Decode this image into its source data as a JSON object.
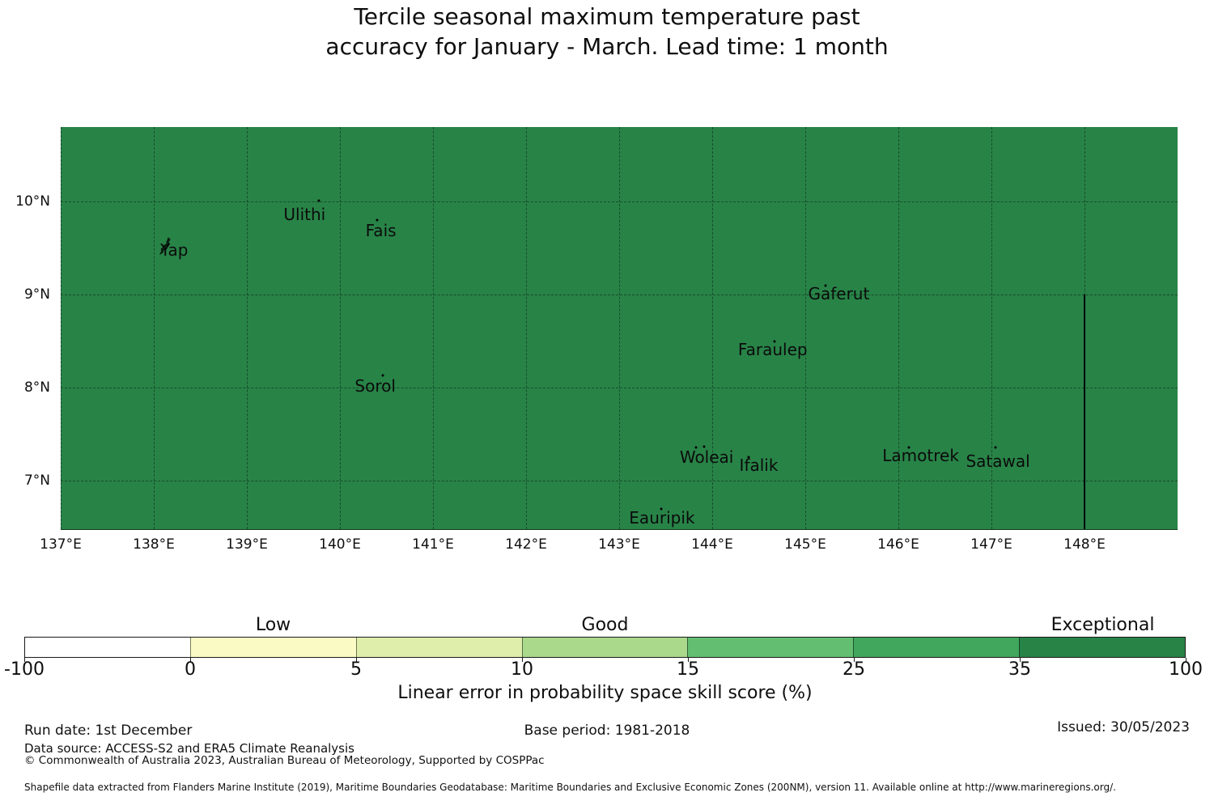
{
  "title": {
    "line1": "Tercile seasonal maximum temperature past",
    "line2": "accuracy for January - March. Lead time: 1 month"
  },
  "colorbar": {
    "axis_label": "Linear error in probability space skill score (%)",
    "tick_labels": [
      "-100",
      "0",
      "5",
      "10",
      "15",
      "25",
      "35",
      "100"
    ],
    "boundaries": [
      -100,
      0,
      5,
      10,
      15,
      25,
      35,
      100
    ],
    "segment_colors": [
      "#ffffff",
      "#fafac5",
      "#dfeeab",
      "#aad98b",
      "#63be72",
      "#41a75d",
      "#288347"
    ],
    "categories": [
      {
        "label": "Low",
        "segment_index": 1
      },
      {
        "label": "Good",
        "segment_index": 3
      },
      {
        "label": "Exceptional",
        "segment_index": 6
      }
    ]
  },
  "footer": {
    "run_date": "Run date: 1st December",
    "base_period": "Base period: 1981-2018",
    "issued": "Issued: 30/05/2023",
    "data_source": "Data source: ACCESS-S2 and ERA5 Climate Reanalysis",
    "copyright": "© Commonwealth of Australia 2023, Australian Bureau of Meteorology, Supported by COSPPac",
    "shapefile": "Shapefile data extracted from Flanders Marine Institute (2019), Maritime Boundaries Geodatabase: Maritime Boundaries and Exclusive Economic Zones (200NM), version 11. Available online at http://www.marineregions.org/."
  },
  "chart_data": {
    "type": "heatmap",
    "title": "Tercile seasonal maximum temperature past accuracy for January - March. Lead time: 1 month",
    "xlabel": "",
    "ylabel": "",
    "x_axis": {
      "ticks": [
        137,
        138,
        139,
        140,
        141,
        142,
        143,
        144,
        145,
        146,
        147,
        148
      ],
      "tick_suffix": "°E",
      "lim": [
        137,
        149
      ]
    },
    "y_axis": {
      "ticks": [
        10,
        9,
        8,
        7
      ],
      "tick_suffix": "°N",
      "lim": [
        6.48,
        10.8
      ]
    },
    "grid": "dashed",
    "region_fill": {
      "category": "Exceptional",
      "value_bin": "35-100",
      "color": "#288347"
    },
    "eez_boundary_line": {
      "lon": 148.0,
      "lat_start": 9.0,
      "lat_end": 6.48
    },
    "islands": [
      {
        "name": "Yap",
        "label_lon": 138.22,
        "label_lat": 9.48,
        "marker": "outline",
        "marker_lon": 138.13,
        "marker_lat": 9.52
      },
      {
        "name": "Ulithi",
        "label_lon": 139.62,
        "label_lat": 9.86,
        "dots": [
          {
            "lon": 139.77,
            "lat": 10.01
          }
        ]
      },
      {
        "name": "Fais",
        "label_lon": 140.44,
        "label_lat": 9.69,
        "dots": [
          {
            "lon": 140.4,
            "lat": 9.8
          }
        ]
      },
      {
        "name": "Gaferut",
        "label_lon": 145.36,
        "label_lat": 9.01,
        "dots": [
          {
            "lon": 145.22,
            "lat": 9.1
          }
        ]
      },
      {
        "name": "Faraulep",
        "label_lon": 144.65,
        "label_lat": 8.41,
        "dots": [
          {
            "lon": 144.67,
            "lat": 8.5
          }
        ]
      },
      {
        "name": "Sorol",
        "label_lon": 140.38,
        "label_lat": 8.02,
        "dots": [
          {
            "lon": 140.46,
            "lat": 8.13
          }
        ]
      },
      {
        "name": "Woleai",
        "label_lon": 143.94,
        "label_lat": 7.25,
        "dots": [
          {
            "lon": 143.83,
            "lat": 7.36
          },
          {
            "lon": 143.91,
            "lat": 7.37
          }
        ]
      },
      {
        "name": "Ifalik",
        "label_lon": 144.5,
        "label_lat": 7.17,
        "dots": [
          {
            "lon": 144.39,
            "lat": 7.25
          }
        ]
      },
      {
        "name": "Lamotrek",
        "label_lon": 146.24,
        "label_lat": 7.27,
        "dots": [
          {
            "lon": 146.11,
            "lat": 7.36
          }
        ]
      },
      {
        "name": "Satawal",
        "label_lon": 147.07,
        "label_lat": 7.21,
        "dots": [
          {
            "lon": 147.04,
            "lat": 7.36
          }
        ]
      },
      {
        "name": "Eauripik",
        "label_lon": 143.46,
        "label_lat": 6.6,
        "dots": [
          {
            "lon": 143.45,
            "lat": 6.7
          }
        ]
      }
    ],
    "colorbar": {
      "label": "Linear error in probability space skill score (%)",
      "boundaries": [
        -100,
        0,
        5,
        10,
        15,
        25,
        35,
        100
      ],
      "colors": [
        "#ffffff",
        "#fafac5",
        "#dfeeab",
        "#aad98b",
        "#63be72",
        "#41a75d",
        "#288347"
      ],
      "category_labels": [
        {
          "label": "Low",
          "range": [
            0,
            5
          ]
        },
        {
          "label": "Good",
          "range": [
            10,
            15
          ]
        },
        {
          "label": "Exceptional",
          "range": [
            35,
            100
          ]
        }
      ]
    }
  }
}
